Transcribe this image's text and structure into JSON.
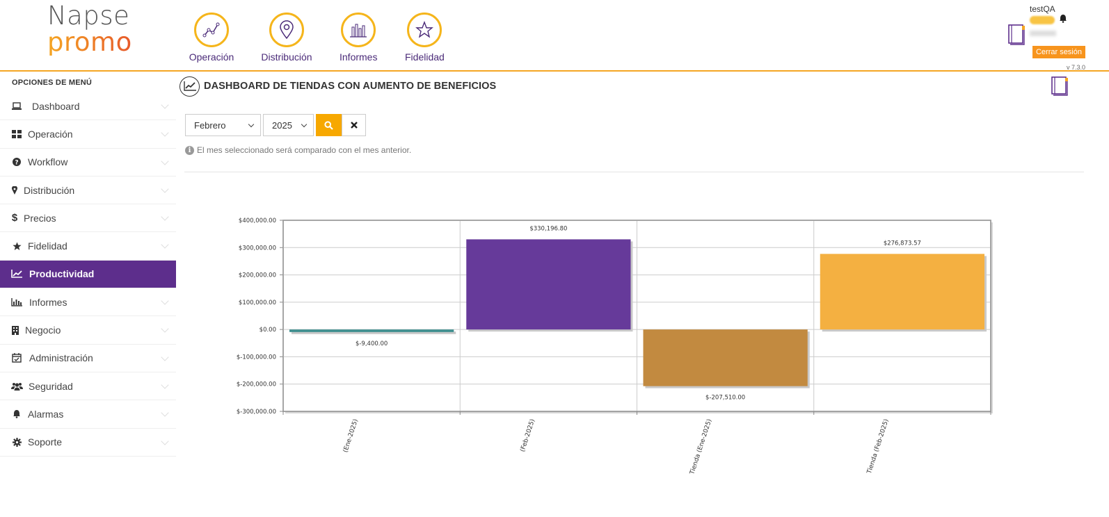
{
  "app": {
    "logo_line1": "Napse",
    "logo_line2": "promo"
  },
  "topnav": [
    {
      "label": "Operación",
      "icon": "chart-line-icon"
    },
    {
      "label": "Distribución",
      "icon": "map-pin-icon"
    },
    {
      "label": "Informes",
      "icon": "bar-chart-icon"
    },
    {
      "label": "Fidelidad",
      "icon": "star-icon"
    }
  ],
  "user": {
    "name": "testQA",
    "logout_label": "Cerrar sesión",
    "version": "v 7.3.0"
  },
  "sidebar": {
    "title": "OPCIONES DE MENÚ",
    "items": [
      {
        "label": "Dashboard",
        "icon": "laptop-icon"
      },
      {
        "label": "Operación",
        "icon": "grid-icon"
      },
      {
        "label": "Workflow",
        "icon": "question-circle-icon"
      },
      {
        "label": "Distribución",
        "icon": "map-marker-icon"
      },
      {
        "label": "Precios",
        "icon": "dollar-icon"
      },
      {
        "label": "Fidelidad",
        "icon": "star-icon"
      },
      {
        "label": "Productividad",
        "icon": "line-chart-icon",
        "active": true
      },
      {
        "label": "Informes",
        "icon": "bar-chart-icon"
      },
      {
        "label": "Negocio",
        "icon": "building-icon"
      },
      {
        "label": "Administración",
        "icon": "calendar-check-icon"
      },
      {
        "label": "Seguridad",
        "icon": "users-icon"
      },
      {
        "label": "Alarmas",
        "icon": "bell-icon"
      },
      {
        "label": "Soporte",
        "icon": "gear-icon"
      }
    ]
  },
  "main": {
    "title": "DASHBOARD DE TIENDAS CON AUMENTO DE BENEFICIOS",
    "filters": {
      "month": "Febrero",
      "year": "2025"
    },
    "info_text": "El mes seleccionado será comparado con el mes anterior."
  },
  "chart_data": {
    "type": "bar",
    "title": "",
    "xlabel": "",
    "ylabel": "",
    "ylim": [
      -300000,
      400000
    ],
    "yticks": [
      400000,
      300000,
      200000,
      100000,
      0,
      -100000,
      -200000,
      -300000
    ],
    "ytick_labels": [
      "$400,000.00",
      "$300,000.00",
      "$200,000.00",
      "$100,000.00",
      "$0.00",
      "$-100,000.00",
      "$-200,000.00",
      "$-300,000.00"
    ],
    "categories": [
      "(Ene-2025)",
      "(Feb-2025)",
      "Tienda (Ene-2025)",
      "Tienda (Feb-2025)"
    ],
    "values": [
      -9400,
      330196.8,
      -207510,
      276873.57
    ],
    "value_labels": [
      "$-9,400.00",
      "$330,196.80",
      "$-207,510.00",
      "$276,873.57"
    ],
    "colors": [
      "#3f8f8f",
      "#663a9a",
      "#c28a40",
      "#f4b041"
    ],
    "grid": true
  }
}
